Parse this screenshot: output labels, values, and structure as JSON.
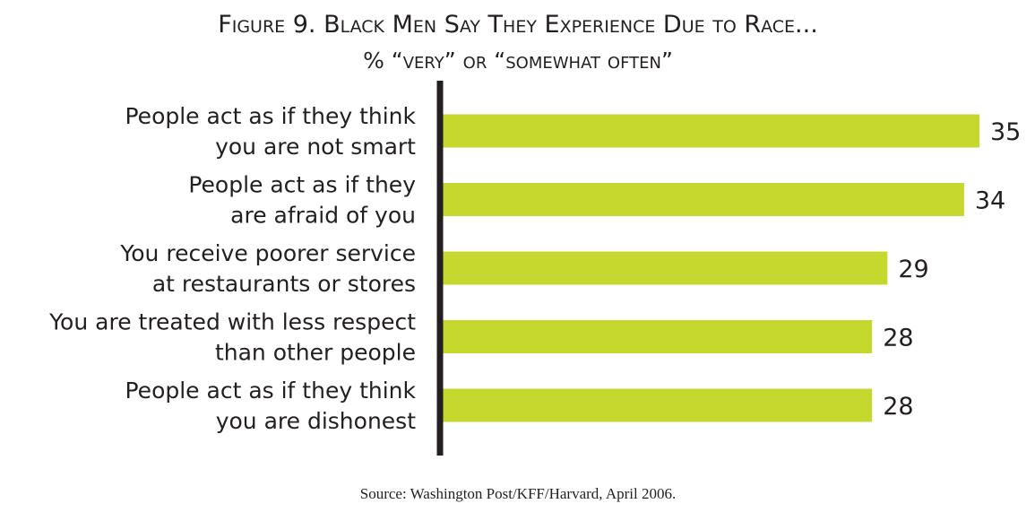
{
  "chart_data": {
    "type": "bar",
    "orientation": "horizontal",
    "title": "Figure 9. Black Men Say They Experience Due to Race...",
    "subtitle": "% “very” or “somewhat often”",
    "categories": [
      [
        "People act as if they think",
        "you are not smart"
      ],
      [
        "People act as if they",
        "are afraid of you"
      ],
      [
        "You receive poorer service",
        "at restaurants or stores"
      ],
      [
        "You are treated with less respect",
        "than other people"
      ],
      [
        "People act as if they think",
        "you are dishonest"
      ]
    ],
    "values": [
      35,
      34,
      29,
      28,
      28
    ],
    "data_labels": [
      "35",
      "34",
      "29",
      "28",
      "28"
    ],
    "xlabel": "",
    "ylabel": "",
    "xlim": [
      0,
      35
    ],
    "grid": false,
    "legend": "none",
    "bar_color": "#c4d82e",
    "axis_color": "#231f20",
    "source": "Source: Washington Post/KFF/Harvard, April 2006."
  }
}
